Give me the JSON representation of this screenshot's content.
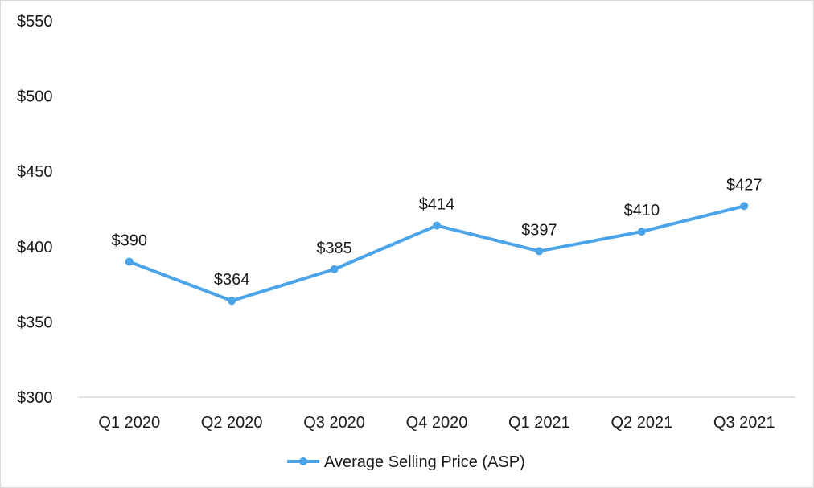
{
  "chart_data": {
    "type": "line",
    "categories": [
      "Q1 2020",
      "Q2 2020",
      "Q3 2020",
      "Q4 2020",
      "Q1 2021",
      "Q2 2021",
      "Q3 2021"
    ],
    "series": [
      {
        "name": "Average Selling Price (ASP)",
        "values": [
          390,
          364,
          385,
          414,
          397,
          410,
          427
        ],
        "data_labels": [
          "$390",
          "$364",
          "$385",
          "$414",
          "$397",
          "$410",
          "$427"
        ],
        "color": "#4ba3e8"
      }
    ],
    "yticks": [
      300,
      350,
      400,
      450,
      500,
      550
    ],
    "ytick_labels": [
      "$300",
      "$350",
      "$400",
      "$450",
      "$500",
      "$550"
    ],
    "ylim": [
      300,
      550
    ],
    "grid": false,
    "legend_position": "bottom",
    "axis_color": "#d9d9d9"
  }
}
